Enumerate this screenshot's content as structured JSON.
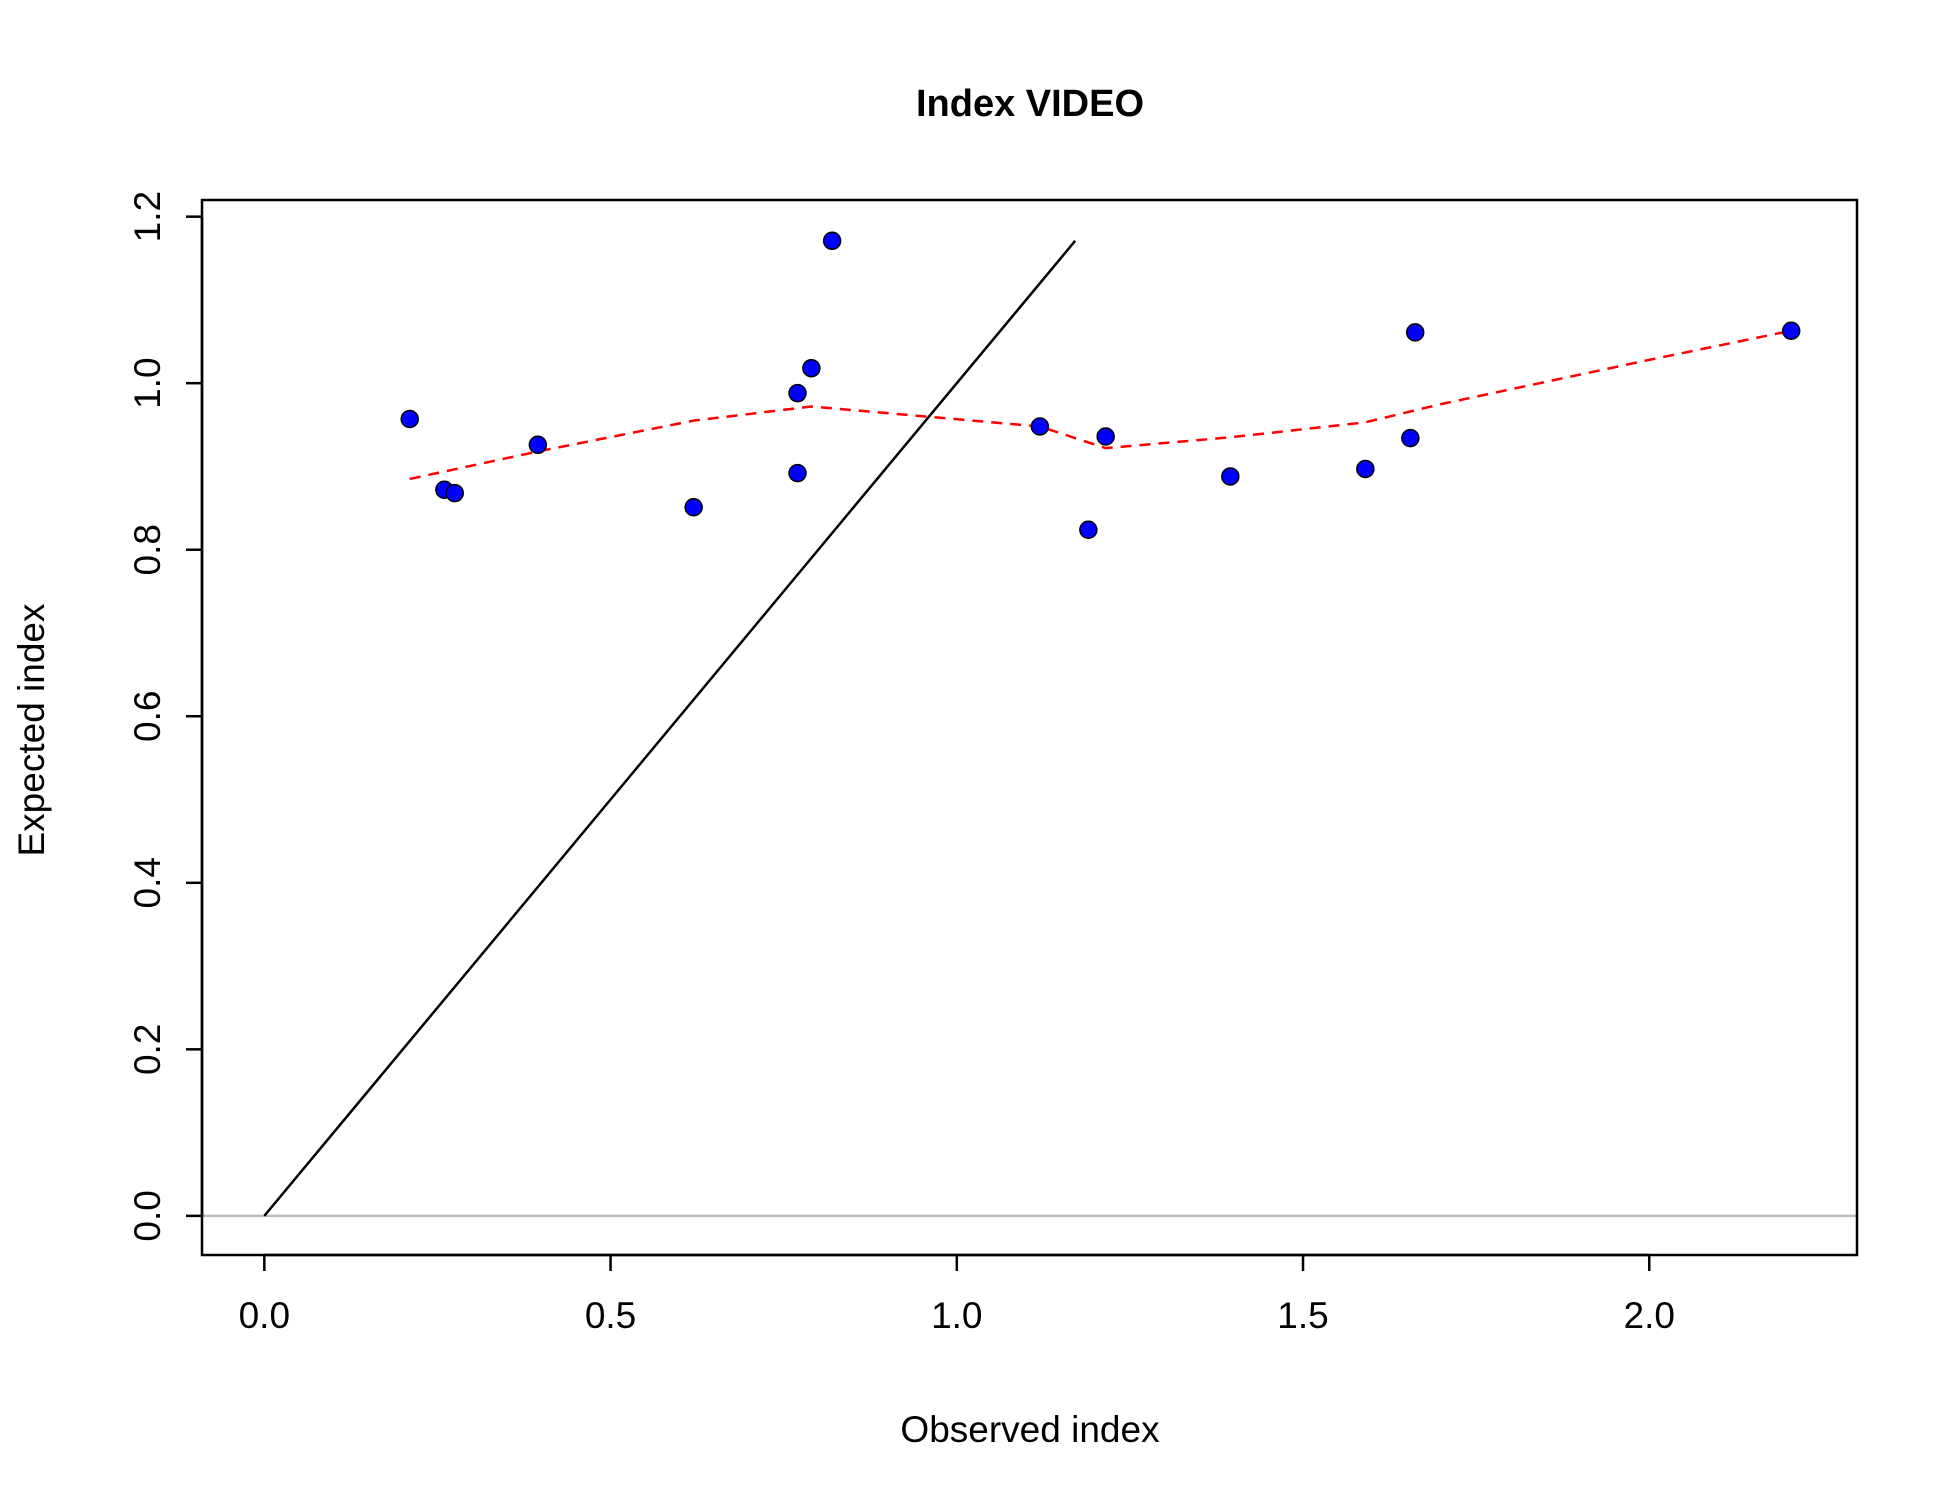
{
  "chart_data": {
    "type": "scatter",
    "title": "Index VIDEO",
    "xlabel": "Observed index",
    "ylabel": "Expected index",
    "xlim": [
      -0.09,
      2.3
    ],
    "ylim": [
      -0.047,
      1.22
    ],
    "x_ticks": [
      {
        "value": 0.0,
        "label": "0.0"
      },
      {
        "value": 0.5,
        "label": "0.5"
      },
      {
        "value": 1.0,
        "label": "1.0"
      },
      {
        "value": 1.5,
        "label": "1.5"
      },
      {
        "value": 2.0,
        "label": "2.0"
      }
    ],
    "y_ticks": [
      {
        "value": 0.0,
        "label": "0.0"
      },
      {
        "value": 0.2,
        "label": "0.2"
      },
      {
        "value": 0.4,
        "label": "0.4"
      },
      {
        "value": 0.6,
        "label": "0.6"
      },
      {
        "value": 0.8,
        "label": "0.8"
      },
      {
        "value": 1.0,
        "label": "1.0"
      },
      {
        "value": 1.2,
        "label": "1.2"
      }
    ],
    "grid": false,
    "series": [
      {
        "kind": "points",
        "color": "#0000ff",
        "stroke": "#000000",
        "x": [
          0.21,
          0.26,
          0.275,
          0.395,
          0.62,
          0.77,
          0.77,
          0.79,
          0.82,
          1.12,
          1.19,
          1.215,
          1.395,
          1.59,
          1.655,
          1.662,
          2.205
        ],
        "y": [
          0.957,
          0.872,
          0.868,
          0.926,
          0.851,
          0.892,
          0.988,
          1.018,
          1.171,
          0.948,
          0.824,
          0.936,
          0.888,
          0.897,
          0.934,
          1.061,
          1.063
        ]
      },
      {
        "kind": "line",
        "style": "dashed",
        "color": "#ff0000",
        "x": [
          0.21,
          0.395,
          0.62,
          0.79,
          1.12,
          1.215,
          1.395,
          1.59,
          1.7,
          2.0,
          2.205
        ],
        "y": [
          0.885,
          0.918,
          0.955,
          0.972,
          0.948,
          0.922,
          0.935,
          0.953,
          0.975,
          1.028,
          1.063
        ]
      },
      {
        "kind": "line",
        "style": "solid",
        "color": "#000000",
        "x": [
          0.0,
          1.171
        ],
        "y": [
          0.0,
          1.171
        ]
      },
      {
        "kind": "hline",
        "color": "#bebebe",
        "y": 0.0
      }
    ]
  }
}
